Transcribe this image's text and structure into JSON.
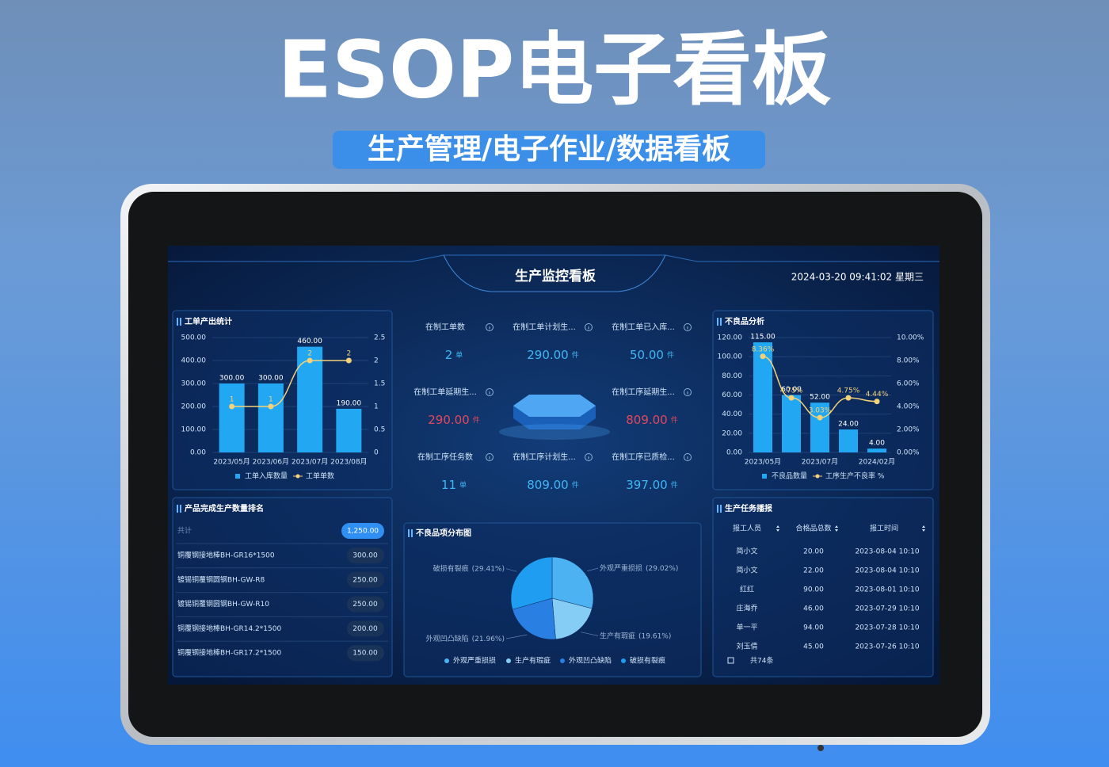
{
  "banner": {
    "title": "ESOP电子看板",
    "subtitle": "生产管理/电子作业/数据看板"
  },
  "dashboard": {
    "title": "生产监控看板",
    "datetime": "2024-03-20 09:41:02 星期三"
  },
  "output_chart": {
    "type": "combo",
    "title": "工单产出统计",
    "categories": [
      "2023/05月",
      "2023/06月",
      "2023/07月",
      "2023/08月"
    ],
    "series": [
      {
        "name": "工单入库数量",
        "type": "bar",
        "color": "#22a8f2",
        "values": [
          300,
          300,
          460,
          190
        ],
        "value_labels": [
          "300.00",
          "300.00",
          "460.00",
          "190.00"
        ]
      },
      {
        "name": "工单单数",
        "type": "line",
        "axis": "y2",
        "color": "#f3d27a",
        "values": [
          1,
          1,
          2,
          2
        ]
      }
    ],
    "ylim": [
      0,
      500
    ],
    "yticks": [
      {
        "value": 0,
        "label": "0.00"
      },
      {
        "value": 100,
        "label": "100.00"
      },
      {
        "value": 200,
        "label": "200.00"
      },
      {
        "value": 300,
        "label": "300.00"
      },
      {
        "value": 400,
        "label": "400.00"
      },
      {
        "value": 500,
        "label": "500.00"
      }
    ],
    "y2lim": [
      0,
      2.5
    ],
    "y2ticks": [
      0,
      0.5,
      1,
      1.5,
      2,
      2.5
    ],
    "grid": true
  },
  "defect_chart": {
    "type": "combo",
    "title": "不良品分析",
    "categories": [
      "2023/05月",
      null,
      "2023/07月",
      null,
      "2024/02月"
    ],
    "series": [
      {
        "name": "不良品数量",
        "type": "bar",
        "color": "#22a8f2",
        "values": [
          115,
          60,
          52,
          24,
          4
        ],
        "value_labels": [
          "115.00",
          "60.00",
          "52.00",
          "24.00",
          "4.00"
        ]
      },
      {
        "name": "工序生产不良率 %",
        "type": "line",
        "axis": "y2",
        "color": "#f3d27a",
        "values": [
          8.36,
          4.75,
          3.03,
          4.75,
          4.44
        ],
        "value_labels": [
          "8.36%",
          "4.75%",
          "3.03%",
          "4.75%",
          "4.44%"
        ]
      }
    ],
    "ylim": [
      0,
      120
    ],
    "yticks": [
      {
        "value": 0,
        "label": "0.00"
      },
      {
        "value": 20,
        "label": "20.00"
      },
      {
        "value": 40,
        "label": "40.00"
      },
      {
        "value": 60,
        "label": "60.00"
      },
      {
        "value": 80,
        "label": "80.00"
      },
      {
        "value": 100,
        "label": "100.00"
      },
      {
        "value": 120,
        "label": "120.00"
      }
    ],
    "y2lim": [
      0,
      10
    ],
    "y2ticks": [
      {
        "value": 0,
        "label": "0.00%"
      },
      {
        "value": 2,
        "label": "2.00%"
      },
      {
        "value": 4,
        "label": "4.00%"
      },
      {
        "value": 6,
        "label": "6.00%"
      },
      {
        "value": 8,
        "label": "8.00%"
      },
      {
        "value": 10,
        "label": "10.00%"
      }
    ],
    "grid": true
  },
  "stats": [
    {
      "label": "在制工单数",
      "value": "2",
      "unit": "单",
      "color": "#3fb6f5"
    },
    {
      "label": "在制工单计划生...",
      "value": "290.00",
      "unit": "件",
      "color": "#3fb6f5"
    },
    {
      "label": "在制工单已入库...",
      "value": "50.00",
      "unit": "件",
      "color": "#3fb6f5"
    },
    {
      "label": "在制工单延期生...",
      "value": "290.00",
      "unit": "件",
      "color": "#e5475c"
    },
    {
      "label": "在制工序延期生...",
      "value": "809.00",
      "unit": "件",
      "color": "#e5475c"
    },
    {
      "label": "在制工序任务数",
      "value": "11",
      "unit": "单",
      "color": "#3fb6f5"
    },
    {
      "label": "在制工序计划生...",
      "value": "809.00",
      "unit": "件",
      "color": "#3fb6f5"
    },
    {
      "label": "在制工序已质检...",
      "value": "397.00",
      "unit": "件",
      "color": "#3fb6f5"
    }
  ],
  "ranking": {
    "title": "产品完成生产数量排名",
    "total": {
      "name": "共计",
      "value": "1,250.00"
    },
    "rows": [
      {
        "name": "铜覆钢接地棒BH-GR16*1500",
        "value": "300.00"
      },
      {
        "name": "镀锡铜覆钢圆钢BH-GW-R8",
        "value": "250.00"
      },
      {
        "name": "镀锡铜覆钢圆钢BH-GW-R10",
        "value": "250.00"
      },
      {
        "name": "铜覆钢接地棒BH-GR14.2*1500",
        "value": "200.00"
      },
      {
        "name": "铜覆钢接地棒BH-GR17.2*1500",
        "value": "150.00"
      }
    ]
  },
  "defect_pie": {
    "type": "pie",
    "title": "不良品项分布图",
    "categories": [
      "外观严重损损",
      "生产有瑕疵",
      "外观凹凸缺陷",
      "破损有裂痕"
    ],
    "values": [
      29.02,
      19.61,
      21.96,
      29.41
    ],
    "value_labels": [
      "(29.02%)",
      "(19.61%)",
      "(21.96%)",
      "(29.41%)"
    ],
    "colors": [
      "#4cb2f2",
      "#86cdf6",
      "#2a7fe2",
      "#1f9df0"
    ]
  },
  "tasks": {
    "title": "生产任务播报",
    "columns": [
      "报工人员",
      "合格品总数",
      "报工时间"
    ],
    "rows": [
      [
        "简小文",
        "20.00",
        "2023-08-04 10:10"
      ],
      [
        "简小文",
        "22.00",
        "2023-08-04 10:10"
      ],
      [
        "红红",
        "90.00",
        "2023-08-01 10:10"
      ],
      [
        "庄海乔",
        "46.00",
        "2023-07-29 10:10"
      ],
      [
        "单一平",
        "94.00",
        "2023-07-28 10:10"
      ],
      [
        "刘玉倩",
        "45.00",
        "2023-07-26 10:10"
      ]
    ],
    "footer": "共74条"
  }
}
